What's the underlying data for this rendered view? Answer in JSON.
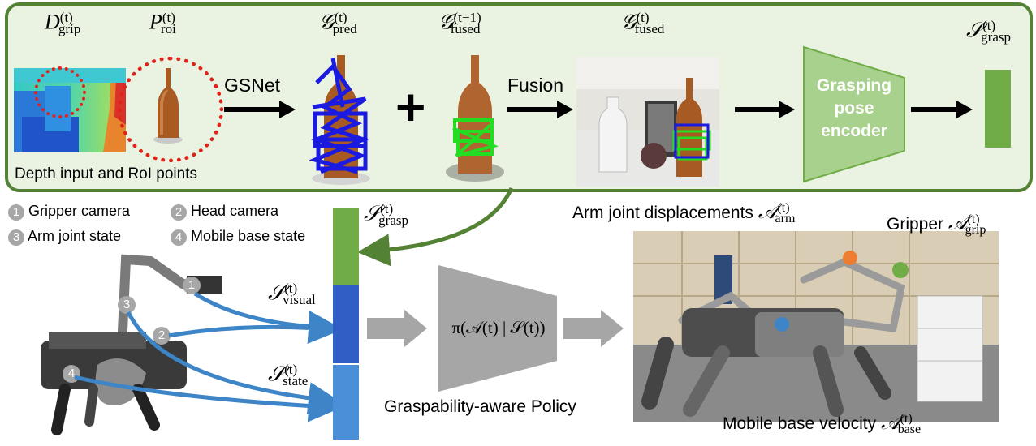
{
  "top_panel": {
    "labels": {
      "d_grip": {
        "base": "D",
        "sup": "(t)",
        "sub": "grip"
      },
      "p_roi": {
        "base": "P",
        "sup": "(t)",
        "sub": "roi"
      },
      "g_pred": {
        "base": "𝒢",
        "sup": "(t)",
        "sub": "pred"
      },
      "g_fused_prev": {
        "base": "𝒢",
        "sup": "(t−1)",
        "sub": "fused"
      },
      "g_fused": {
        "base": "𝒢",
        "sup": "(t)",
        "sub": "fused"
      },
      "s_grasp": {
        "base": "𝒮",
        "sup": "(t)",
        "sub": "grasp"
      }
    },
    "gsnet": "GSNet",
    "fusion": "Fusion",
    "plus": "+",
    "encoder": [
      "Grasping",
      "pose",
      "encoder"
    ],
    "caption": "Depth input and RoI points"
  },
  "legend": [
    {
      "num": "1",
      "text": "Gripper camera"
    },
    {
      "num": "2",
      "text": "Head camera"
    },
    {
      "num": "3",
      "text": "Arm joint state"
    },
    {
      "num": "4",
      "text": "Mobile base state"
    }
  ],
  "middle": {
    "s_grasp": {
      "base": "𝒮",
      "sup": "(t)",
      "sub": "grasp"
    },
    "s_visual": {
      "base": "𝒮",
      "sup": "(t)",
      "sub": "visual"
    },
    "s_state": {
      "base": "𝒮",
      "sup": "(t)",
      "sub": "state"
    },
    "policy_formula": "π(𝒜(t) | 𝒮(t))",
    "policy_caption": "Graspability-aware Policy"
  },
  "right": {
    "arm": {
      "text": "Arm joint displacements ",
      "base": "𝒜",
      "sup": "(t)",
      "sub": "arm"
    },
    "grip": {
      "text": "Gripper ",
      "base": "𝒜",
      "sup": "(t)",
      "sub": "grip"
    },
    "base": {
      "text": "Mobile base velocity ",
      "base": "𝒜",
      "sup": "(t)",
      "sub": "base"
    }
  },
  "colors": {
    "panel_border": "#548235",
    "panel_fill": "#eaf3e1",
    "grasp_green": "#70ad47",
    "visual_blue": "#2f5fc4",
    "state_blue": "#4a90d9",
    "arrow_blue": "#3d85c6",
    "orange": "#ed7d31",
    "gray": "#a6a6a6"
  },
  "icons": [
    "bottle-icon",
    "robot-dog-icon",
    "grasp-pose-icon",
    "scene-icon"
  ]
}
